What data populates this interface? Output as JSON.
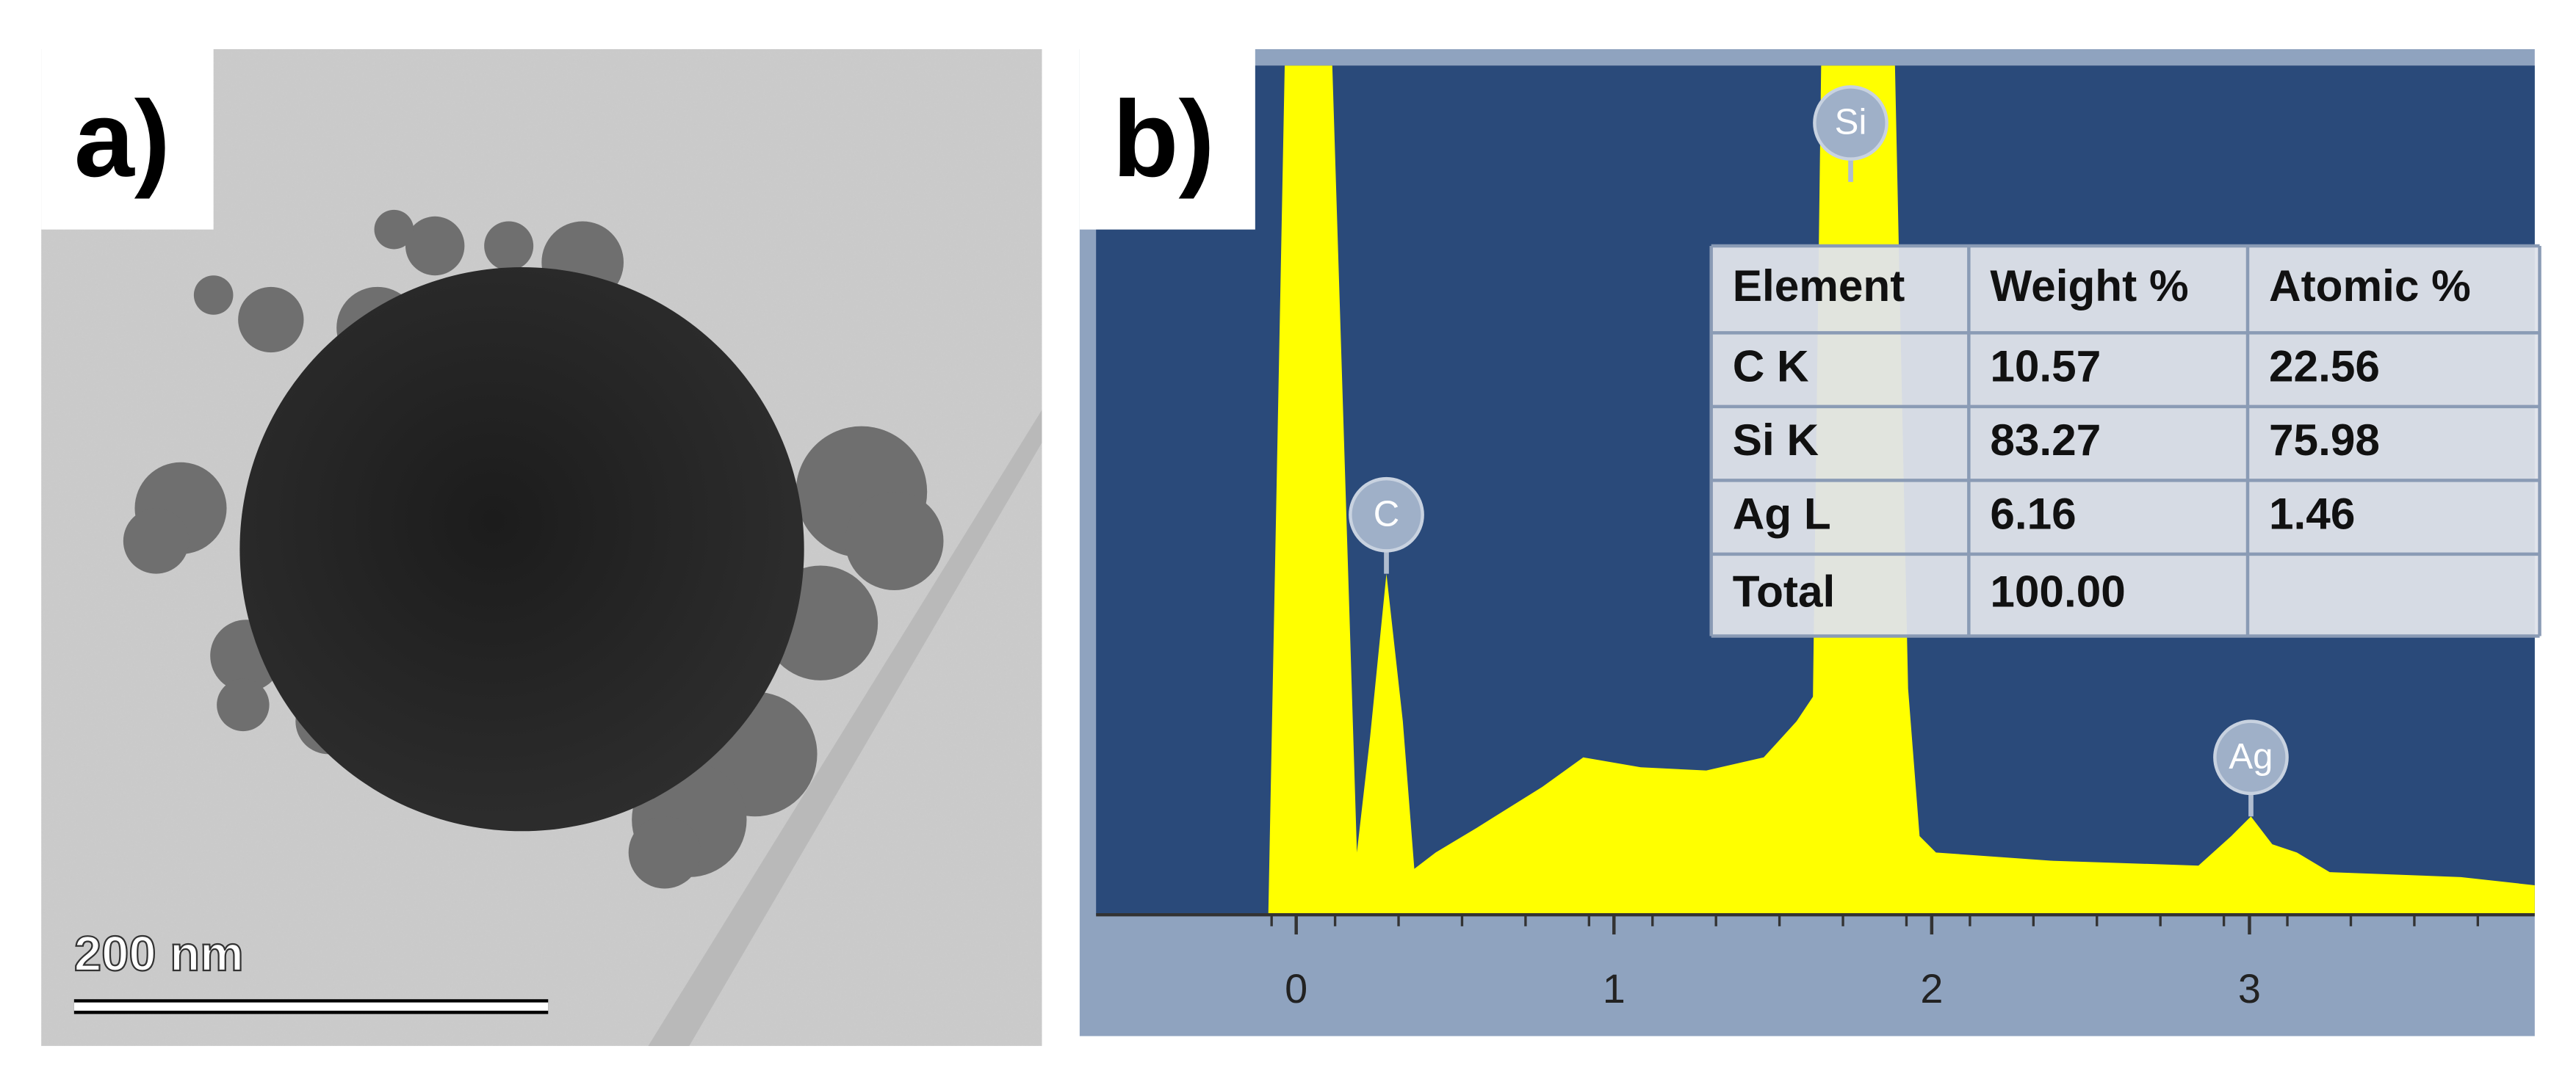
{
  "panels": {
    "a": {
      "label": "a)",
      "scale_bar": "200 nm"
    },
    "b": {
      "label": "b)",
      "x_ticks": [
        0,
        1,
        2,
        3
      ],
      "peak_labels": [
        "C",
        "Si",
        "Ag"
      ],
      "table": {
        "header": [
          "Element",
          "Weight %",
          "Atomic %"
        ],
        "rows": [
          [
            "C K",
            "10.57",
            "22.56"
          ],
          [
            "Si K",
            "83.27",
            "75.98"
          ],
          [
            "Ag L",
            "6.16",
            "1.46"
          ],
          [
            "Total",
            "100.00"
          ]
        ]
      }
    }
  }
}
